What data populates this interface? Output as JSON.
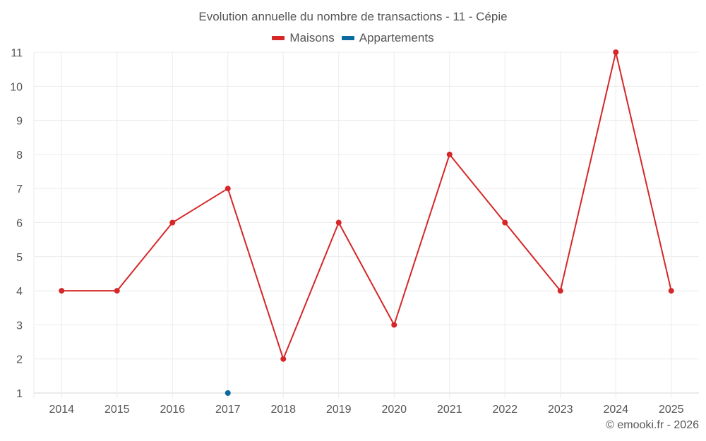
{
  "title": "Evolution annuelle du nombre de transactions - 11 - Cépie",
  "legend": [
    {
      "label": "Maisons",
      "color": "#d62728"
    },
    {
      "label": "Appartements",
      "color": "#0b6aa2"
    }
  ],
  "credit": "© emooki.fr - 2026",
  "chart_data": {
    "type": "line",
    "title": "Evolution annuelle du nombre de transactions - 11 - Cépie",
    "xlabel": "",
    "ylabel": "",
    "categories": [
      "2014",
      "2015",
      "2016",
      "2017",
      "2018",
      "2019",
      "2020",
      "2021",
      "2022",
      "2023",
      "2024",
      "2025"
    ],
    "series": [
      {
        "name": "Maisons",
        "color": "#d62728",
        "values": [
          4,
          4,
          6,
          7,
          2,
          6,
          3,
          8,
          6,
          4,
          11,
          4
        ]
      },
      {
        "name": "Appartements",
        "color": "#0b6aa2",
        "values": [
          null,
          null,
          null,
          1,
          null,
          null,
          null,
          null,
          null,
          null,
          null,
          null
        ]
      }
    ],
    "ylim": [
      1,
      11
    ],
    "yticks": [
      1,
      2,
      3,
      4,
      5,
      6,
      7,
      8,
      9,
      10,
      11
    ],
    "grid": true,
    "legend_position": "top"
  }
}
